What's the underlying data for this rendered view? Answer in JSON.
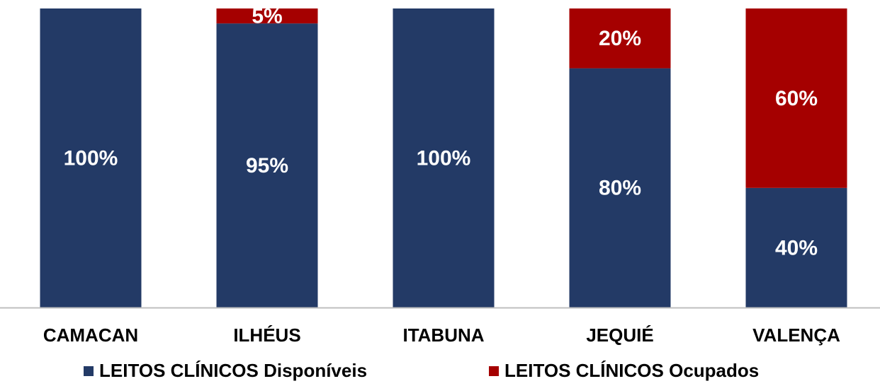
{
  "chart_data": {
    "type": "stacked_bar",
    "categories": [
      "CAMACAN",
      "ILHÉUS",
      "ITABUNA",
      "JEQUIÉ",
      "VALENÇA"
    ],
    "ylim": [
      0,
      100
    ],
    "series": [
      {
        "name": "LEITOS CLÍNICOS Disponíveis",
        "color": "#233a66",
        "values": [
          100,
          95,
          100,
          80,
          40
        ],
        "value_labels": [
          "100%",
          "95%",
          "100%",
          "80%",
          "40%"
        ]
      },
      {
        "name": "LEITOS CLÍNICOS Ocupados",
        "color": "#a50000",
        "values": [
          0,
          5,
          0,
          20,
          60
        ],
        "value_labels": [
          null,
          "5%",
          null,
          "20%",
          "60%"
        ]
      }
    ],
    "legend": "bottom"
  }
}
